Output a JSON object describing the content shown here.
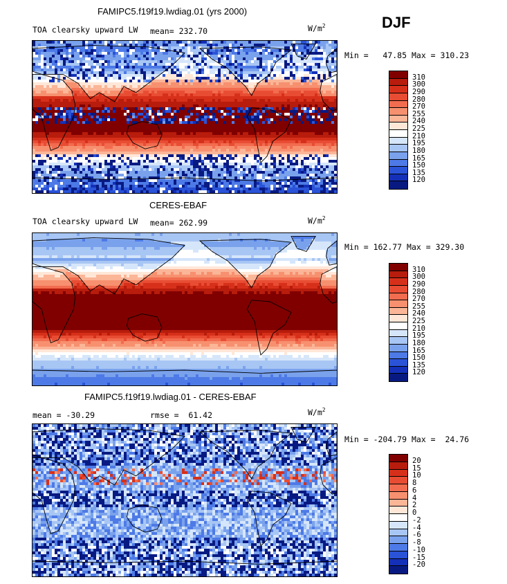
{
  "season": "DJF",
  "chart_data": [
    {
      "type": "heatmap",
      "title": "FAMIPC5.f19f19.lwdiag.01 (yrs 2000)",
      "variable": "TOA clearsky upward LW",
      "mean_label": "mean=",
      "mean": "232.70",
      "units": "W/m",
      "units_exp": "2",
      "min_label": "Min =",
      "min": "47.85",
      "max_label": "Max =",
      "max": "310.23",
      "levels": [
        "310",
        "300",
        "290",
        "280",
        "270",
        "255",
        "240",
        "225",
        "210",
        "195",
        "180",
        "165",
        "150",
        "135",
        "120"
      ],
      "colors": [
        "#800000",
        "#b71c0c",
        "#d7301a",
        "#e84d33",
        "#f26c4f",
        "#f7906f",
        "#fbb597",
        "#ffe7d8",
        "#ffffff",
        "#d6e6fa",
        "#a8c6f4",
        "#7aa2ec",
        "#4d7ae6",
        "#2a53d8",
        "#1430b8",
        "#081a82"
      ]
    },
    {
      "type": "heatmap",
      "title": "CERES-EBAF",
      "variable": "TOA clearsky upward LW",
      "mean_label": "mean=",
      "mean": "262.99",
      "units": "W/m",
      "units_exp": "2",
      "min_label": "Min =",
      "min": "162.77",
      "max_label": "Max =",
      "max": "329.30",
      "levels": [
        "310",
        "300",
        "290",
        "280",
        "270",
        "255",
        "240",
        "225",
        "210",
        "195",
        "180",
        "165",
        "150",
        "135",
        "120"
      ],
      "colors": [
        "#800000",
        "#b71c0c",
        "#d7301a",
        "#e84d33",
        "#f26c4f",
        "#f7906f",
        "#fbb597",
        "#ffe7d8",
        "#ffffff",
        "#d6e6fa",
        "#a8c6f4",
        "#7aa2ec",
        "#4d7ae6",
        "#2a53d8",
        "#1430b8",
        "#081a82"
      ]
    },
    {
      "type": "heatmap",
      "title": "FAMIPC5.f19f19.lwdiag.01 - CERES-EBAF",
      "mean_label": "mean =",
      "mean": "-30.29",
      "rmse_label": "rmse =",
      "rmse": "61.42",
      "units": "W/m",
      "units_exp": "2",
      "min_label": "Min =",
      "min": "-204.79",
      "max_label": "Max =",
      "max": "24.76",
      "levels": [
        "20",
        "15",
        "10",
        "8",
        "6",
        "4",
        "2",
        "0",
        "-2",
        "-4",
        "-6",
        "-8",
        "-10",
        "-15",
        "-20"
      ],
      "colors": [
        "#800000",
        "#b71c0c",
        "#d7301a",
        "#e84d33",
        "#f26c4f",
        "#f7906f",
        "#fbb597",
        "#ffe7d8",
        "#ffffff",
        "#d6e6fa",
        "#a8c6f4",
        "#7aa2ec",
        "#4d7ae6",
        "#2a53d8",
        "#1430b8",
        "#081a82"
      ]
    }
  ]
}
